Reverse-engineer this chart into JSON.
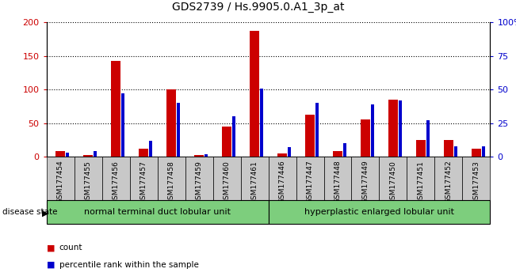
{
  "title": "GDS2739 / Hs.9905.0.A1_3p_at",
  "samples": [
    "GSM177454",
    "GSM177455",
    "GSM177456",
    "GSM177457",
    "GSM177458",
    "GSM177459",
    "GSM177460",
    "GSM177461",
    "GSM177446",
    "GSM177447",
    "GSM177448",
    "GSM177449",
    "GSM177450",
    "GSM177451",
    "GSM177452",
    "GSM177453"
  ],
  "counts": [
    8,
    3,
    143,
    12,
    100,
    3,
    45,
    188,
    5,
    63,
    8,
    56,
    85,
    25,
    25,
    12
  ],
  "percentiles": [
    3,
    4,
    47,
    12,
    40,
    2,
    30,
    51,
    7,
    40,
    10,
    39,
    42,
    27,
    8,
    8
  ],
  "group1_label": "normal terminal duct lobular unit",
  "group2_label": "hyperplastic enlarged lobular unit",
  "group1_count": 8,
  "group2_count": 8,
  "count_color": "#cc0000",
  "percentile_color": "#0000cc",
  "bar_bg_color": "#c8c8c8",
  "group_bg_color": "#7dce7d",
  "ylim_left": [
    0,
    200
  ],
  "ylim_right": [
    0,
    100
  ],
  "yticks_left": [
    0,
    50,
    100,
    150,
    200
  ],
  "yticks_right": [
    0,
    25,
    50,
    75,
    100
  ],
  "ytick_labels_right": [
    "0",
    "25",
    "50",
    "75",
    "100%"
  ]
}
